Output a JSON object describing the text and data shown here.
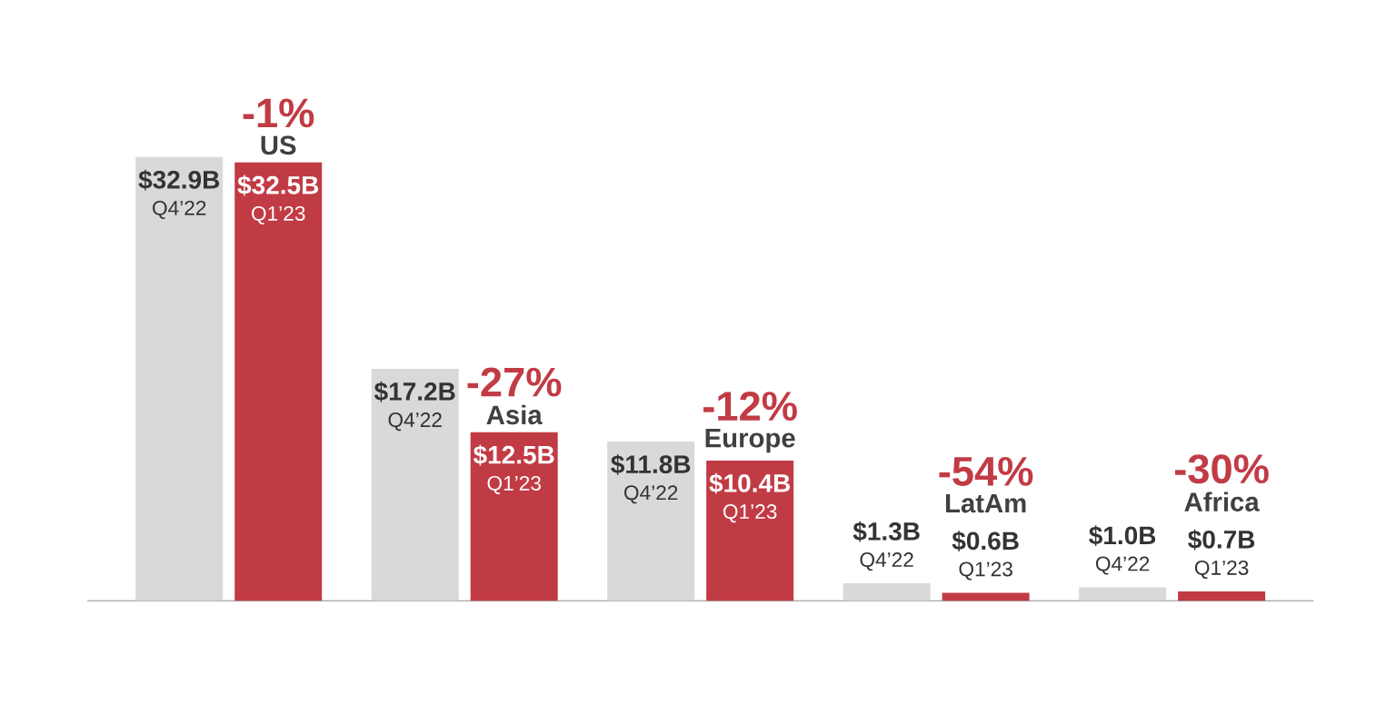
{
  "chart_data": {
    "type": "bar",
    "categories": [
      "US",
      "Asia",
      "Europe",
      "LatAm",
      "Africa"
    ],
    "series": [
      {
        "name": "Q4’22",
        "color": "#d9d9d9",
        "values": [
          32.9,
          17.2,
          11.8,
          1.3,
          1.0
        ],
        "value_labels": [
          "$32.9B",
          "$17.2B",
          "$11.8B",
          "$1.3B",
          "$1.0B"
        ]
      },
      {
        "name": "Q1’23",
        "color": "#c13b45",
        "values": [
          32.5,
          12.5,
          10.4,
          0.6,
          0.7
        ],
        "value_labels": [
          "$32.5B",
          "$12.5B",
          "$10.4B",
          "$0.6B",
          "$0.7B"
        ]
      }
    ],
    "annotations": [
      "-1%",
      "-27%",
      "-12%",
      "-54%",
      "-30%"
    ]
  }
}
